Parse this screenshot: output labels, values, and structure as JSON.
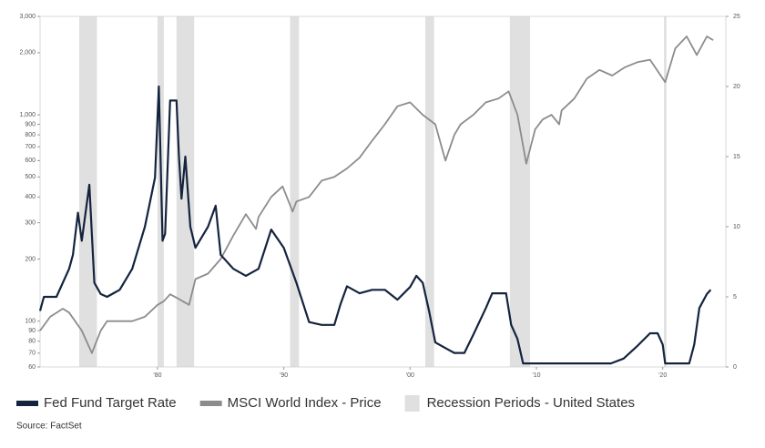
{
  "chart_data": {
    "type": "line",
    "xlim": [
      1970.7,
      2025
    ],
    "xticks": [
      {
        "value": 1980,
        "label": "'80"
      },
      {
        "value": 1990,
        "label": "'90"
      },
      {
        "value": 2000,
        "label": "'00"
      },
      {
        "value": 2010,
        "label": "'10"
      },
      {
        "value": 2020,
        "label": "'20"
      }
    ],
    "ylim": [
      60,
      3000
    ],
    "log_y": true,
    "yticks": [
      60,
      70,
      80,
      90,
      100,
      200,
      300,
      400,
      500,
      600,
      700,
      800,
      900,
      {
        "value": 1000,
        "label": "1,000"
      },
      {
        "value": 2000,
        "label": "2,000"
      },
      {
        "value": 3000,
        "label": "3,000"
      }
    ],
    "y2lim": [
      0,
      25
    ],
    "y2ticks": [
      0,
      5,
      10,
      15,
      20,
      25
    ],
    "grid": false,
    "series": [
      {
        "name": "Fed Fund Target Rate",
        "color": "#14243e",
        "axis": "y2",
        "x": [
          1970.7,
          1971,
          1972,
          1973,
          1973.3,
          1973.7,
          1974,
          1974.6,
          1975,
          1975.5,
          1976,
          1977,
          1978,
          1979,
          1979.8,
          1980.1,
          1980.4,
          1980.6,
          1981,
          1981.5,
          1981.7,
          1981.9,
          1982.2,
          1982.6,
          1983,
          1984,
          1984.6,
          1985,
          1986,
          1987,
          1988,
          1989,
          1990,
          1991,
          1992,
          1993,
          1994,
          1994.5,
          1995,
          1996,
          1997,
          1998,
          1999,
          2000,
          2000.5,
          2001,
          2001.5,
          2002,
          2003,
          2003.5,
          2004.3,
          2005,
          2006,
          2006.5,
          2007.6,
          2008,
          2008.5,
          2008.95,
          2009,
          2015.9,
          2016.9,
          2018,
          2019,
          2019.6,
          2020,
          2020.2,
          2022.1,
          2022.5,
          2022.9,
          2023.5,
          2023.8
        ],
        "values": [
          4,
          5,
          5,
          7,
          8,
          11,
          9,
          13,
          6,
          5.2,
          5,
          5.5,
          7,
          10,
          13.5,
          20,
          9,
          9.5,
          19,
          19,
          15,
          12,
          15,
          10,
          8.5,
          10,
          11.5,
          8,
          7,
          6.5,
          7,
          9.8,
          8.5,
          6,
          3.2,
          3,
          3,
          4.5,
          5.75,
          5.25,
          5.5,
          5.5,
          4.8,
          5.7,
          6.5,
          6,
          4,
          1.75,
          1.25,
          1,
          1,
          2.3,
          4.2,
          5.25,
          5.25,
          3,
          2,
          0.25,
          0.25,
          0.25,
          0.6,
          1.5,
          2.4,
          2.4,
          1.6,
          0.25,
          0.25,
          1.6,
          4.2,
          5.2,
          5.5
        ]
      },
      {
        "name": "MSCI World Index - Price",
        "color": "#8c8c8c",
        "x": [
          1970.7,
          1971.5,
          1972.5,
          1973,
          1974,
          1974.8,
          1975.5,
          1976,
          1977,
          1978,
          1979,
          1980,
          1980.5,
          1981,
          1981.5,
          1982.5,
          1983,
          1984,
          1985,
          1986,
          1987,
          1987.8,
          1988,
          1989,
          1989.9,
          1990.7,
          1991,
          1992,
          1993,
          1994,
          1995,
          1996,
          1997,
          1998,
          1999,
          2000,
          2001,
          2002,
          2002.8,
          2003.5,
          2004,
          2005,
          2006,
          2007,
          2007.8,
          2008.5,
          2009.2,
          2009.9,
          2010.5,
          2011.2,
          2011.8,
          2012,
          2013,
          2014,
          2015,
          2016,
          2017,
          2018,
          2019,
          2020.2,
          2021,
          2021.9,
          2022.7,
          2023.5,
          2024
        ],
        "values": [
          90,
          105,
          115,
          110,
          90,
          70,
          90,
          100,
          100,
          100,
          105,
          120,
          125,
          135,
          130,
          120,
          160,
          170,
          200,
          260,
          330,
          280,
          320,
          400,
          450,
          340,
          380,
          400,
          480,
          500,
          550,
          620,
          750,
          900,
          1100,
          1150,
          1000,
          900,
          600,
          800,
          900,
          1000,
          1150,
          1200,
          1300,
          1000,
          580,
          850,
          950,
          1000,
          900,
          1050,
          1200,
          1500,
          1650,
          1550,
          1700,
          1800,
          1850,
          1440,
          2100,
          2400,
          1950,
          2400,
          2300
        ]
      }
    ],
    "recessions": {
      "name": "Recession Periods - United States",
      "color": "#e0e0e0",
      "start": [
        1973.8,
        1980.0,
        1981.5,
        1990.5,
        2001.2,
        2007.9,
        2020.1
      ],
      "end": [
        1975.2,
        1980.5,
        1982.9,
        1991.2,
        2001.9,
        2009.5,
        2020.3
      ]
    },
    "source": "Source: FactSet"
  }
}
